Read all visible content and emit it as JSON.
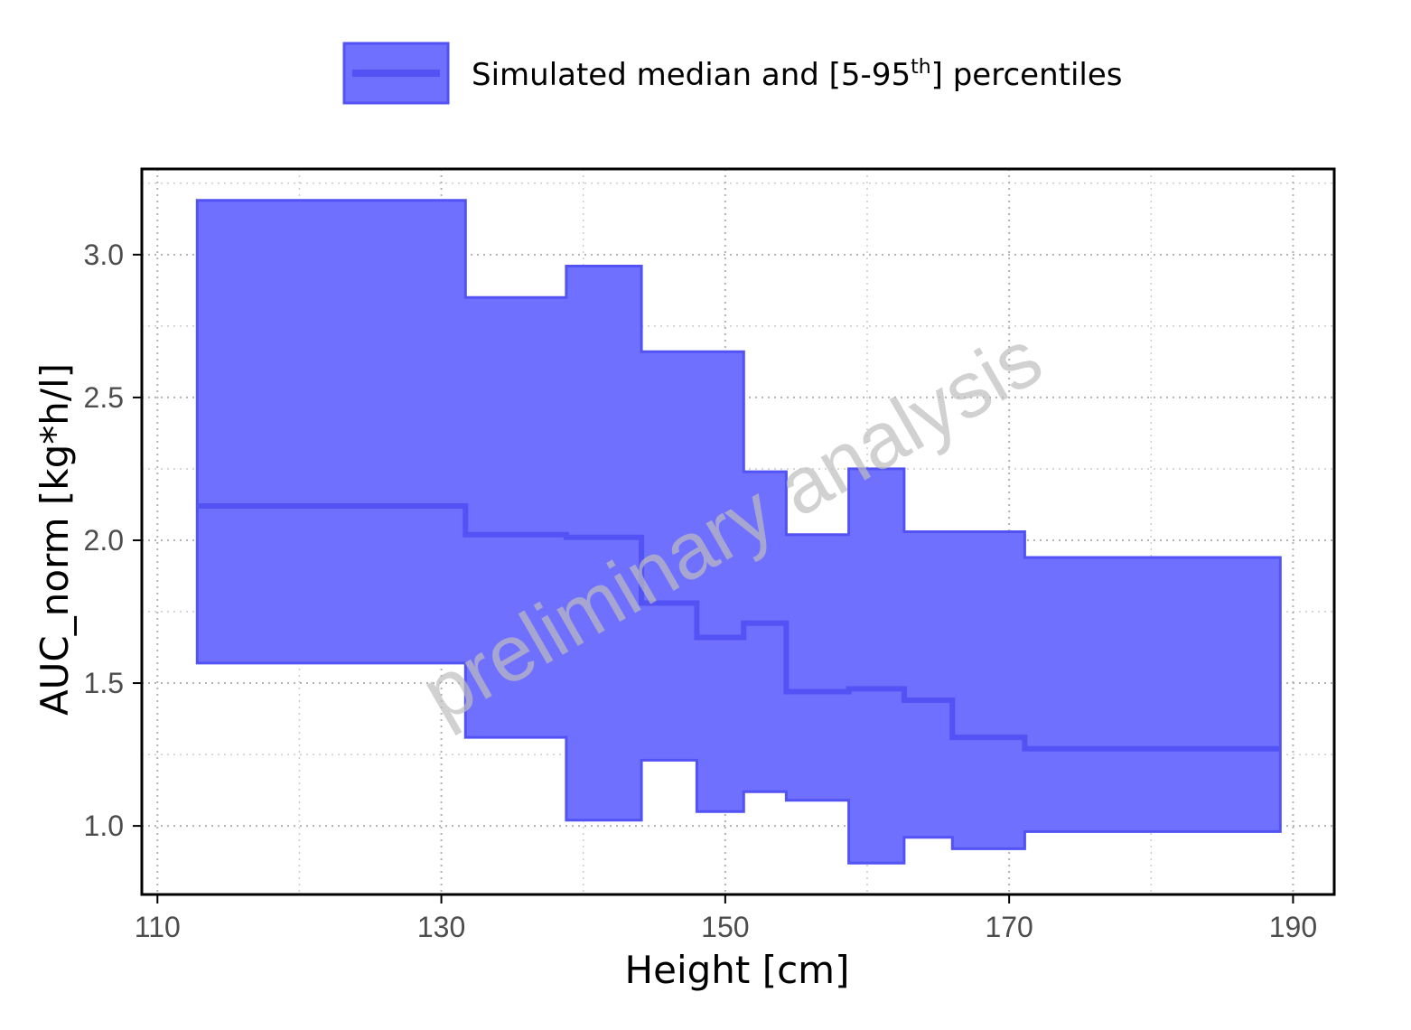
{
  "legend": {
    "label_prefix": "Simulated median and [5-95",
    "label_sup": "th",
    "label_suffix": "] percentiles",
    "position": "top-center"
  },
  "watermark": "preliminary analysis",
  "colors": {
    "band_fill": "#7070ff",
    "line": "#5252f5",
    "grid": "#cccccc",
    "axis": "#000000",
    "tick_text": "#4d4d4d"
  },
  "chart_data": {
    "type": "area",
    "step": true,
    "xlabel": "Height [cm]",
    "ylabel": "AUC_norm [kg*h/l]",
    "xlim": [
      108.9,
      192.9
    ],
    "ylim": [
      0.76,
      3.3
    ],
    "x_ticks": [
      110,
      130,
      150,
      170,
      190
    ],
    "x_tick_labels": [
      "110",
      "130",
      "150",
      "170",
      "190"
    ],
    "y_ticks": [
      1.0,
      1.5,
      2.0,
      2.5,
      3.0
    ],
    "y_tick_labels": [
      "1.0",
      "1.5",
      "2.0",
      "2.5",
      "3.0"
    ],
    "grid": true,
    "series": [
      {
        "name": "Simulated median and [5-95th] percentiles",
        "bins": [
          {
            "x0": 112.8,
            "x1": 131.7,
            "p5": 1.57,
            "median": 2.12,
            "p95": 3.19
          },
          {
            "x0": 131.7,
            "x1": 138.8,
            "p5": 1.31,
            "median": 2.02,
            "p95": 2.85
          },
          {
            "x0": 138.8,
            "x1": 144.1,
            "p5": 1.02,
            "median": 2.01,
            "p95": 2.96
          },
          {
            "x0": 144.1,
            "x1": 148.0,
            "p5": 1.23,
            "median": 1.78,
            "p95": 2.66
          },
          {
            "x0": 148.0,
            "x1": 151.3,
            "p5": 1.05,
            "median": 1.66,
            "p95": 2.66
          },
          {
            "x0": 151.3,
            "x1": 154.3,
            "p5": 1.12,
            "median": 1.71,
            "p95": 2.24
          },
          {
            "x0": 154.3,
            "x1": 158.7,
            "p5": 1.09,
            "median": 1.47,
            "p95": 2.02
          },
          {
            "x0": 158.7,
            "x1": 162.6,
            "p5": 0.87,
            "median": 1.48,
            "p95": 2.25
          },
          {
            "x0": 162.6,
            "x1": 166.0,
            "p5": 0.96,
            "median": 1.44,
            "p95": 2.03
          },
          {
            "x0": 166.0,
            "x1": 171.1,
            "p5": 0.92,
            "median": 1.31,
            "p95": 2.03
          },
          {
            "x0": 171.1,
            "x1": 189.1,
            "p5": 0.98,
            "median": 1.27,
            "p95": 1.94
          }
        ]
      }
    ]
  }
}
